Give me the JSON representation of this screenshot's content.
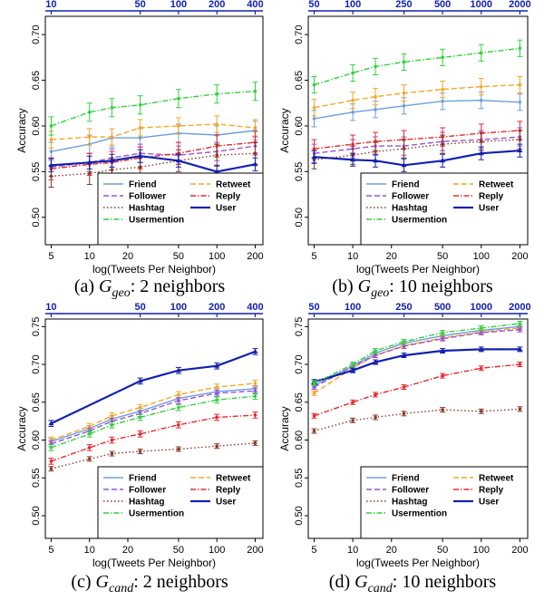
{
  "figure": {
    "tweets_axis_label": "log(Tweets Per Neighbor)",
    "accuracy_axis_label": "Accuracy"
  },
  "legend": {
    "entries": [
      {
        "name": "Friend",
        "color": "#6f9fdc",
        "dash": "solid"
      },
      {
        "name": "Retweet",
        "color": "#f5a623",
        "dash": "dashed"
      },
      {
        "name": "Follower",
        "color": "#9a52d8",
        "dash": "dashed"
      },
      {
        "name": "Reply",
        "color": "#e8282a",
        "dash": "dashdot"
      },
      {
        "name": "Hashtag",
        "color": "#8b3a26",
        "dash": "dotted"
      },
      {
        "name": "User",
        "color": "#1121b0",
        "dash": "solid"
      },
      {
        "name": "Usermention",
        "color": "#31d23a",
        "dash": "dashdot"
      }
    ]
  },
  "chart_data": [
    {
      "type": "line",
      "caption_prefix": "(a) ",
      "caption_sub": "geo",
      "caption_suffix": ": 2 neighbors",
      "x": [
        5,
        10,
        15,
        25,
        50,
        100,
        200
      ],
      "xticks": [
        "5",
        "10",
        "20",
        "50",
        "100",
        "200"
      ],
      "top_xticks": [
        "10",
        "50",
        "100",
        "200",
        "400"
      ],
      "ylim": [
        0.47,
        0.72
      ],
      "yticks": [
        "0.50",
        "0.55",
        "0.60",
        "0.65",
        "0.70"
      ],
      "series": [
        {
          "name": "Friend",
          "values": [
            0.572,
            0.58,
            0.587,
            0.587,
            0.592,
            0.59,
            0.595
          ],
          "err": 0.01
        },
        {
          "name": "Retweet",
          "values": [
            0.585,
            0.588,
            0.588,
            0.598,
            0.6,
            0.602,
            0.598
          ],
          "err": 0.009
        },
        {
          "name": "Follower",
          "values": [
            0.555,
            0.56,
            0.565,
            0.57,
            0.568,
            0.572,
            0.578
          ],
          "err": 0.01
        },
        {
          "name": "Reply",
          "values": [
            0.553,
            0.558,
            0.56,
            0.565,
            0.57,
            0.578,
            0.582
          ],
          "err": 0.012
        },
        {
          "name": "Hashtag",
          "values": [
            0.545,
            0.548,
            0.552,
            0.555,
            0.562,
            0.568,
            0.57
          ],
          "err": 0.012
        },
        {
          "name": "User",
          "values": [
            0.557,
            0.56,
            0.562,
            0.567,
            0.562,
            0.55,
            0.558
          ],
          "err": 0.007
        },
        {
          "name": "Usermention",
          "values": [
            0.6,
            0.615,
            0.62,
            0.623,
            0.63,
            0.635,
            0.638
          ],
          "err": 0.01
        }
      ]
    },
    {
      "type": "line",
      "caption_prefix": "(b) ",
      "caption_sub": "geo",
      "caption_suffix": ": 10 neighbors",
      "x": [
        5,
        10,
        15,
        25,
        50,
        100,
        200
      ],
      "xticks": [
        "5",
        "10",
        "20",
        "50",
        "100",
        "200"
      ],
      "top_xticks": [
        "50",
        "100",
        "250",
        "500",
        "1000",
        "2000"
      ],
      "ylim": [
        0.47,
        0.72
      ],
      "yticks": [
        "0.50",
        "0.55",
        "0.60",
        "0.65",
        "0.70"
      ],
      "series": [
        {
          "name": "Friend",
          "values": [
            0.608,
            0.615,
            0.618,
            0.622,
            0.627,
            0.628,
            0.626
          ],
          "err": 0.009
        },
        {
          "name": "Retweet",
          "values": [
            0.62,
            0.628,
            0.632,
            0.636,
            0.64,
            0.643,
            0.645
          ],
          "err": 0.009
        },
        {
          "name": "Follower",
          "values": [
            0.57,
            0.575,
            0.578,
            0.578,
            0.583,
            0.585,
            0.588
          ],
          "err": 0.01
        },
        {
          "name": "Reply",
          "values": [
            0.575,
            0.58,
            0.583,
            0.585,
            0.588,
            0.592,
            0.595
          ],
          "err": 0.01
        },
        {
          "name": "Hashtag",
          "values": [
            0.563,
            0.568,
            0.572,
            0.575,
            0.58,
            0.583,
            0.585
          ],
          "err": 0.01
        },
        {
          "name": "User",
          "values": [
            0.566,
            0.563,
            0.562,
            0.557,
            0.562,
            0.57,
            0.573
          ],
          "err": 0.007
        },
        {
          "name": "Usermention",
          "values": [
            0.645,
            0.658,
            0.665,
            0.67,
            0.675,
            0.68,
            0.685
          ],
          "err": 0.009
        }
      ]
    },
    {
      "type": "line",
      "caption_prefix": "(c) ",
      "caption_sub": "cand",
      "caption_suffix": ": 2 neighbors",
      "x": [
        5,
        10,
        15,
        25,
        50,
        100,
        200
      ],
      "xticks": [
        "5",
        "10",
        "20",
        "50",
        "100",
        "200"
      ],
      "top_xticks": [
        "10",
        "50",
        "100",
        "200",
        "400"
      ],
      "ylim": [
        0.47,
        0.76
      ],
      "yticks": [
        "0.50",
        "0.55",
        "0.60",
        "0.65",
        "0.70",
        "0.75"
      ],
      "series": [
        {
          "name": "Friend",
          "values": [
            0.598,
            0.615,
            0.628,
            0.638,
            0.655,
            0.664,
            0.668
          ],
          "err": 0.004
        },
        {
          "name": "Retweet",
          "values": [
            0.6,
            0.618,
            0.632,
            0.643,
            0.66,
            0.67,
            0.675
          ],
          "err": 0.004
        },
        {
          "name": "Follower",
          "values": [
            0.595,
            0.612,
            0.625,
            0.635,
            0.652,
            0.662,
            0.665
          ],
          "err": 0.004
        },
        {
          "name": "Reply",
          "values": [
            0.572,
            0.59,
            0.6,
            0.608,
            0.62,
            0.63,
            0.633
          ],
          "err": 0.004
        },
        {
          "name": "Hashtag",
          "values": [
            0.562,
            0.575,
            0.582,
            0.585,
            0.588,
            0.592,
            0.596
          ],
          "err": 0.003
        },
        {
          "name": "User",
          "values": [
            0.622,
            null,
            null,
            0.678,
            0.692,
            0.698,
            0.717
          ],
          "err": 0.004
        },
        {
          "name": "Usermention",
          "values": [
            0.59,
            0.608,
            0.62,
            0.63,
            0.643,
            0.653,
            0.658
          ],
          "err": 0.004
        }
      ]
    },
    {
      "type": "line",
      "caption_prefix": "(d) ",
      "caption_sub": "cand",
      "caption_suffix": ": 10 neighbors",
      "x": [
        5,
        10,
        15,
        25,
        50,
        100,
        200
      ],
      "xticks": [
        "5",
        "10",
        "20",
        "50",
        "100",
        "200"
      ],
      "top_xticks": [
        "50",
        "100",
        "250",
        "500",
        "1000",
        "2000"
      ],
      "ylim": [
        0.47,
        0.76
      ],
      "yticks": [
        "0.50",
        "0.55",
        "0.60",
        "0.65",
        "0.70",
        "0.75"
      ],
      "series": [
        {
          "name": "Friend",
          "values": [
            0.672,
            0.698,
            0.715,
            0.728,
            0.738,
            0.745,
            0.75
          ],
          "err": 0.003
        },
        {
          "name": "Retweet",
          "values": [
            0.662,
            0.695,
            0.712,
            0.725,
            0.735,
            0.743,
            0.748
          ],
          "err": 0.003
        },
        {
          "name": "Follower",
          "values": [
            0.67,
            0.697,
            0.712,
            0.724,
            0.734,
            0.742,
            0.746
          ],
          "err": 0.003
        },
        {
          "name": "Reply",
          "values": [
            0.632,
            0.65,
            0.66,
            0.67,
            0.685,
            0.695,
            0.7
          ],
          "err": 0.003
        },
        {
          "name": "Hashtag",
          "values": [
            0.612,
            0.626,
            0.63,
            0.635,
            0.64,
            0.638,
            0.641
          ],
          "err": 0.003
        },
        {
          "name": "User",
          "values": [
            0.677,
            0.692,
            0.703,
            0.712,
            0.718,
            0.72,
            0.72
          ],
          "err": 0.003
        },
        {
          "name": "Usermention",
          "values": [
            0.675,
            0.7,
            0.718,
            0.73,
            0.742,
            0.748,
            0.754
          ],
          "err": 0.003
        }
      ]
    }
  ]
}
